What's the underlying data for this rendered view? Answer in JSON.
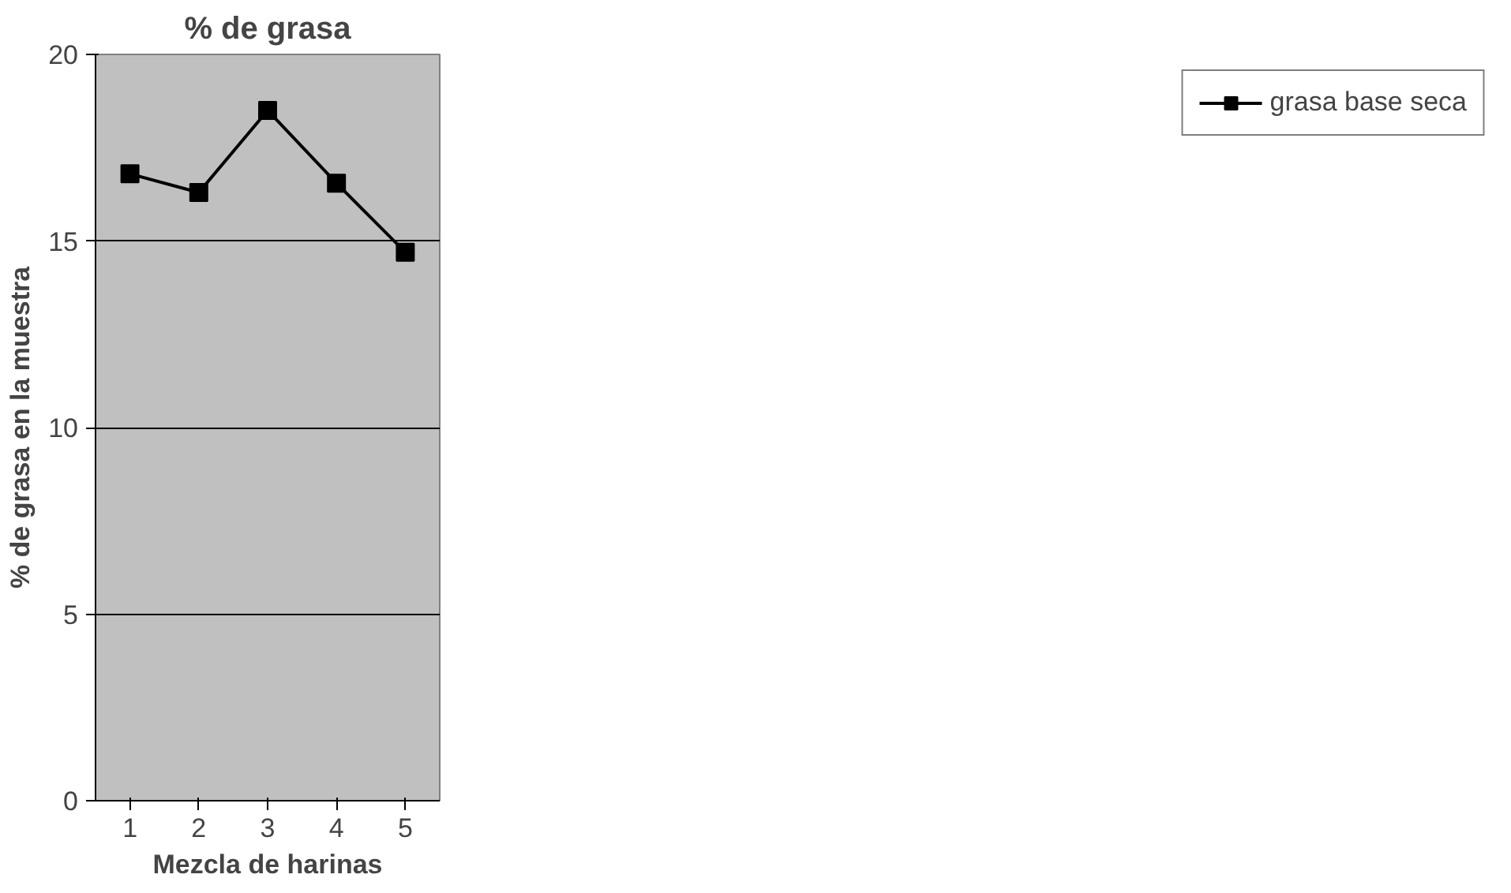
{
  "chart_data": {
    "type": "line",
    "title": "% de grasa",
    "xlabel": "Mezcla de harinas",
    "ylabel": "% de grasa en la muestra",
    "categories": [
      "1",
      "2",
      "3",
      "4",
      "5"
    ],
    "series": [
      {
        "name": "grasa base seca",
        "color": "#000000",
        "values": [
          16.8,
          16.3,
          18.5,
          16.55,
          14.7
        ]
      }
    ],
    "ylim": [
      0,
      20
    ],
    "yticks": [
      0,
      5,
      10,
      15,
      20
    ],
    "grid": "y",
    "legend": "right",
    "marker": "square",
    "line_style": "solid"
  }
}
